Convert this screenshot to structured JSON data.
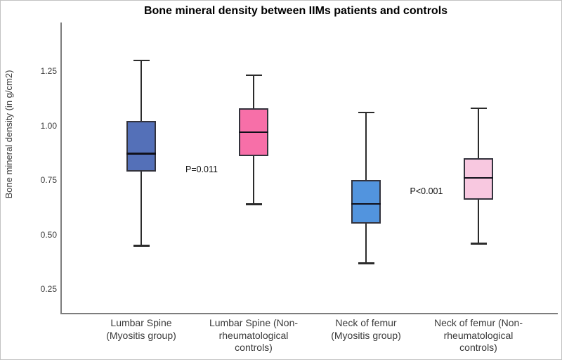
{
  "chart_data": {
    "type": "boxplot",
    "title": "Bone mineral density between IIMs patients and controls",
    "ylabel": "Bone mineral density (in g/cm2)",
    "ylim": [
      0.25,
      1.25
    ],
    "yticks": [
      "0.25",
      "0.50",
      "0.75",
      "1.00",
      "1.25"
    ],
    "grid": false,
    "legend": false,
    "categories": [
      "Lumbar Spine\n(Myositis group)",
      "Lumbar Spine (Non-\nrheumatological\ncontrols)",
      "Neck of femur\n(Myositis group)",
      "Neck of femur (Non-\nrheumatological\ncontrols)"
    ],
    "series": [
      {
        "name": "Lumbar Spine (Myositis group)",
        "whisker_low": 0.45,
        "q1": 0.79,
        "median": 0.87,
        "q3": 1.02,
        "whisker_high": 1.3,
        "fill": "#5470b8"
      },
      {
        "name": "Lumbar Spine (Non-rheumatological controls)",
        "whisker_low": 0.64,
        "q1": 0.86,
        "median": 0.97,
        "q3": 1.08,
        "whisker_high": 1.23,
        "fill": "#f76fa8"
      },
      {
        "name": "Neck of femur (Myositis group)",
        "whisker_low": 0.37,
        "q1": 0.55,
        "median": 0.64,
        "q3": 0.75,
        "whisker_high": 1.06,
        "fill": "#5294de"
      },
      {
        "name": "Neck of femur (Non-rheumatological controls)",
        "whisker_low": 0.46,
        "q1": 0.66,
        "median": 0.76,
        "q3": 0.85,
        "whisker_high": 1.08,
        "fill": "#f8c8e0"
      }
    ],
    "annotations": [
      {
        "text": "P=0.011",
        "between": [
          0,
          1
        ],
        "y": 0.8
      },
      {
        "text": "P<0.001",
        "between": [
          2,
          3
        ],
        "y": 0.7
      }
    ],
    "colors": {
      "axis": "#7d7d7d",
      "whisker": "#2b2b2b",
      "box_border": "#33333d",
      "median": "#10101a",
      "text": "#3a3a3a",
      "title": "#000000"
    }
  }
}
